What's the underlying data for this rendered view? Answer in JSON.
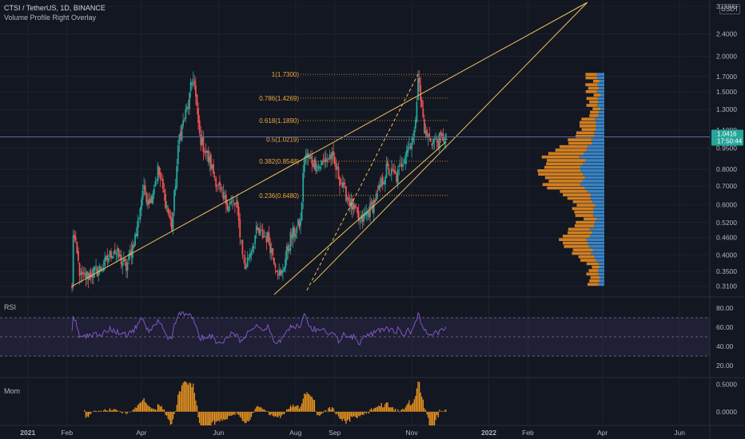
{
  "header": {
    "symbol": "CTSI / TetherUS, 1D, BINANCE",
    "overlay": "Volume Profile Right Overlay"
  },
  "price_axis": {
    "currency": "USDT",
    "ticks": [
      "3.0000",
      "2.4000",
      "2.0000",
      "1.7000",
      "1.5000",
      "1.3000",
      "1.1000",
      "0.9500",
      "0.8000",
      "0.7000",
      "0.6000",
      "0.5200",
      "0.4600",
      "0.4000",
      "0.3500",
      "0.3100"
    ],
    "last_price": "1.0416",
    "countdown": "17:50:44"
  },
  "time_axis": {
    "ticks": [
      "2021",
      "Feb",
      "Apr",
      "Jun",
      "Aug",
      "Sep",
      "Nov",
      "2022",
      "Feb",
      "Apr",
      "Jun"
    ]
  },
  "panes": {
    "rsi": {
      "label": "RSI",
      "ticks": [
        "80.00",
        "60.00",
        "40.00",
        "20.00"
      ]
    },
    "mom": {
      "label": "Mom",
      "ticks": [
        "0.5000",
        "0.0000"
      ]
    }
  },
  "fib_levels": [
    {
      "label": "1(1.7300)",
      "price": 1.73
    },
    {
      "label": "0.786(1.4269)",
      "price": 1.4269
    },
    {
      "label": "0.618(1.1890)",
      "price": 1.189
    },
    {
      "label": "0.5(1.0219)",
      "price": 1.0219
    },
    {
      "label": "0.382(0.8548)",
      "price": 0.8548
    },
    {
      "label": "0.236(0.6480)",
      "price": 0.648
    }
  ],
  "colors": {
    "background": "#131722",
    "up": "#26a69a",
    "down": "#ef5350",
    "trendline": "#f0c05a",
    "fib": "#f0a83a",
    "rsi_line": "#7e57c2",
    "mom": "#f59b1f",
    "vp_buy": "#3d8fd6",
    "vp_sell": "#e68b24",
    "last_price_line": "#5d6b9e"
  },
  "chart_data": {
    "type": "candlestick",
    "scale": "log",
    "symbol": "CTSI/USDT",
    "interval": "1D",
    "ylim": [
      0.29,
      3.1
    ],
    "anchors": [
      [
        "2021-02-05",
        0.3
      ],
      [
        "2021-02-06",
        0.48
      ],
      [
        "2021-02-12",
        0.33
      ],
      [
        "2021-03-01",
        0.36
      ],
      [
        "2021-03-10",
        0.42
      ],
      [
        "2021-03-20",
        0.36
      ],
      [
        "2021-03-28",
        0.48
      ],
      [
        "2021-04-02",
        0.68
      ],
      [
        "2021-04-08",
        0.62
      ],
      [
        "2021-04-14",
        0.8
      ],
      [
        "2021-04-20",
        0.62
      ],
      [
        "2021-04-25",
        0.5
      ],
      [
        "2021-05-01",
        1.05
      ],
      [
        "2021-05-08",
        1.35
      ],
      [
        "2021-05-12",
        1.73
      ],
      [
        "2021-05-17",
        1.05
      ],
      [
        "2021-05-25",
        0.85
      ],
      [
        "2021-06-05",
        0.62
      ],
      [
        "2021-06-15",
        0.6
      ],
      [
        "2021-06-22",
        0.36
      ],
      [
        "2021-07-01",
        0.48
      ],
      [
        "2021-07-10",
        0.46
      ],
      [
        "2021-07-20",
        0.33
      ],
      [
        "2021-07-28",
        0.46
      ],
      [
        "2021-08-05",
        0.52
      ],
      [
        "2021-08-08",
        0.9
      ],
      [
        "2021-08-20",
        0.82
      ],
      [
        "2021-08-29",
        0.9
      ],
      [
        "2021-09-07",
        0.7
      ],
      [
        "2021-09-21",
        0.52
      ],
      [
        "2021-09-29",
        0.58
      ],
      [
        "2021-10-05",
        0.65
      ],
      [
        "2021-10-12",
        0.8
      ],
      [
        "2021-10-20",
        0.75
      ],
      [
        "2021-10-28",
        0.95
      ],
      [
        "2021-11-03",
        1.05
      ],
      [
        "2021-11-06",
        1.73
      ],
      [
        "2021-11-08",
        1.4
      ],
      [
        "2021-11-12",
        1.05
      ],
      [
        "2021-11-20",
        1.0
      ],
      [
        "2021-11-28",
        1.05
      ]
    ],
    "last_price": 1.0416
  }
}
